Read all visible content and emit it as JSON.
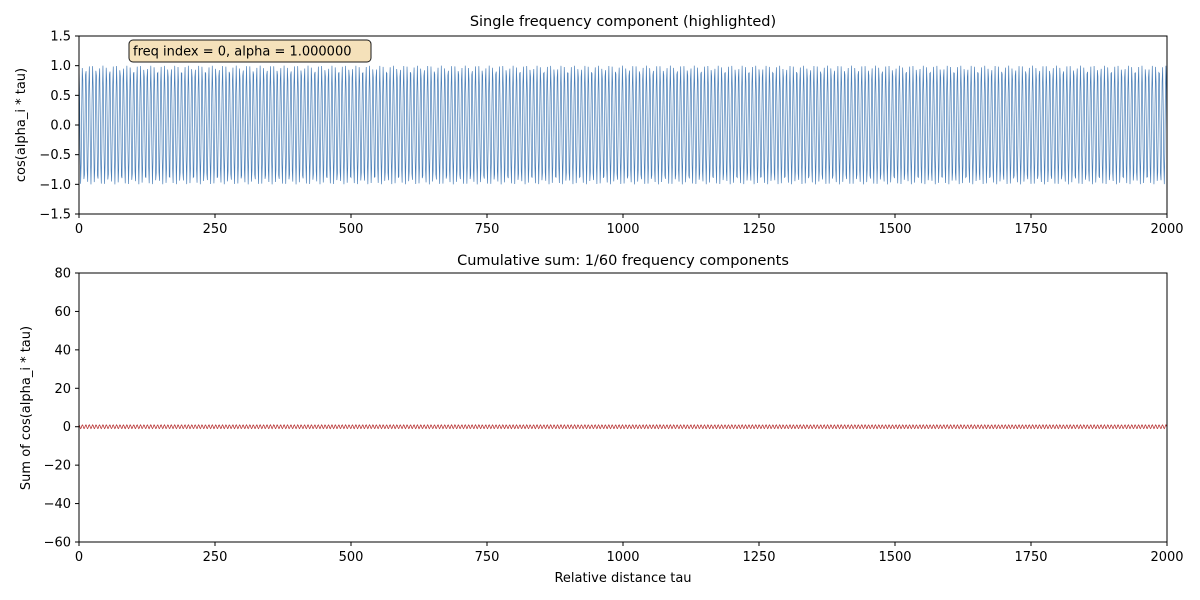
{
  "chart_data": [
    {
      "type": "line",
      "title": "Single frequency component (highlighted)",
      "xlabel": "",
      "ylabel": "cos(alpha_i * tau)",
      "xlim": [
        0,
        2000
      ],
      "ylim": [
        -1.5,
        1.5
      ],
      "xticks": [
        0,
        250,
        500,
        750,
        1000,
        1250,
        1500,
        1750,
        2000
      ],
      "yticks": [
        -1.5,
        -1.0,
        -0.5,
        0.0,
        0.5,
        1.0,
        1.5
      ],
      "xtick_labels": [
        "0",
        "250",
        "500",
        "750",
        "1000",
        "1250",
        "1500",
        "1750",
        "2000"
      ],
      "ytick_labels": [
        "−1.5",
        "−1.0",
        "−0.5",
        "0.0",
        "0.5",
        "1.0",
        "1.5"
      ],
      "grid": false,
      "annotation": "freq index = 0, alpha = 1.000000",
      "series": [
        {
          "function": "cos(alpha * tau)",
          "alpha": 1.0,
          "x_start": 0,
          "x_end": 2000,
          "x_step": 1,
          "color": "#4a7fb8"
        }
      ]
    },
    {
      "type": "line",
      "title": "Cumulative sum: 1/60 frequency components",
      "xlabel": "Relative distance tau",
      "ylabel": "Sum of cos(alpha_i * tau)",
      "xlim": [
        0,
        2000
      ],
      "ylim": [
        -60,
        80
      ],
      "xticks": [
        0,
        250,
        500,
        750,
        1000,
        1250,
        1500,
        1750,
        2000
      ],
      "yticks": [
        -60,
        -40,
        -20,
        0,
        20,
        40,
        60,
        80
      ],
      "xtick_labels": [
        "0",
        "250",
        "500",
        "750",
        "1000",
        "1250",
        "1500",
        "1750",
        "2000"
      ],
      "ytick_labels": [
        "−60",
        "−40",
        "−20",
        "0",
        "20",
        "40",
        "60",
        "80"
      ],
      "grid": false,
      "series": [
        {
          "function": "cos(alpha * tau)",
          "alpha": 1.0,
          "x_start": 0,
          "x_end": 2000,
          "x_step": 1,
          "color": "#b22222"
        }
      ]
    }
  ]
}
